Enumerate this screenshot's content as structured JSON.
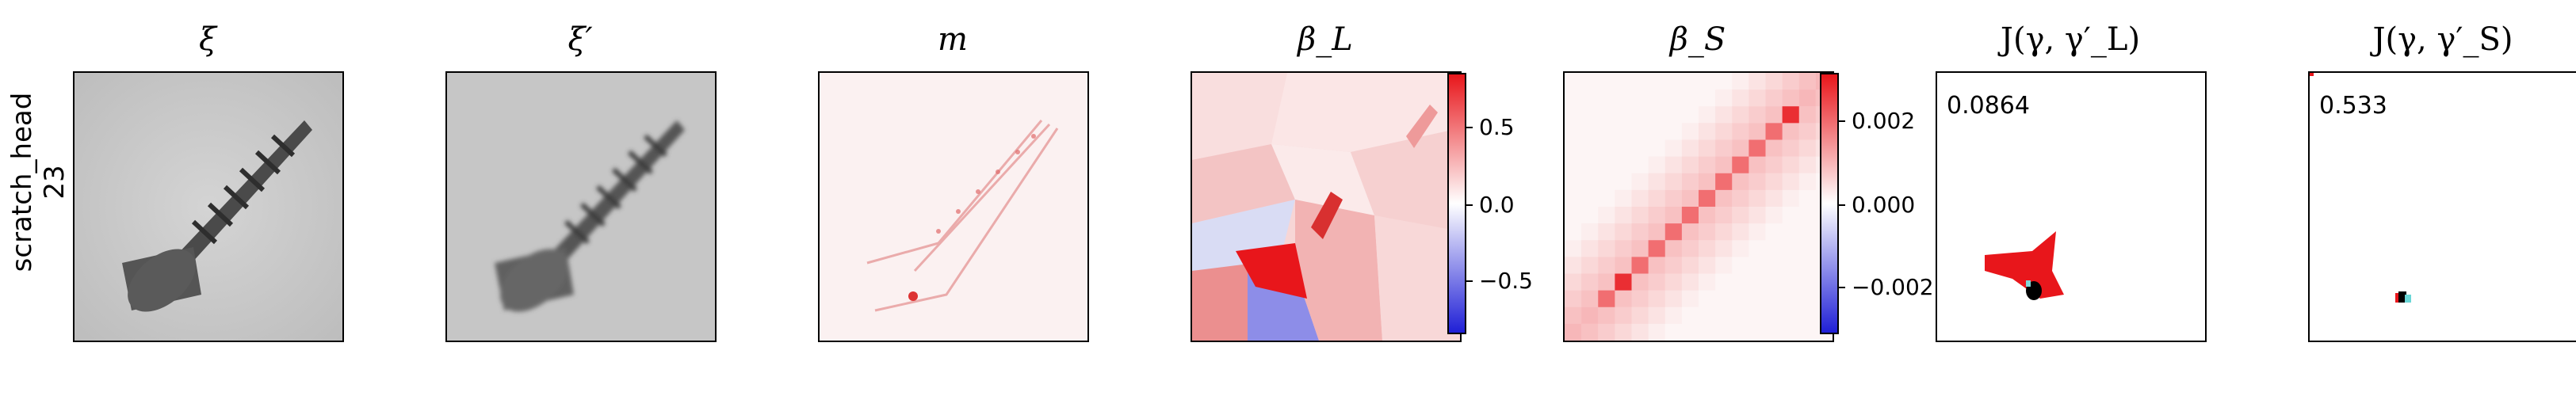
{
  "row_label": {
    "line1": "scratch_head",
    "line2": "23"
  },
  "panels": [
    {
      "title": "ξ"
    },
    {
      "title": "ξ′"
    },
    {
      "title": "m"
    },
    {
      "title": "β_L"
    },
    {
      "title": "β_S"
    },
    {
      "title": "J(γ, γ′_L)"
    },
    {
      "title": "J(γ, γ′_S)"
    }
  ],
  "colorbar_L": {
    "ticks": [
      "0.5",
      "0.0",
      "−0.5"
    ]
  },
  "colorbar_S": {
    "ticks": [
      "0.002",
      "0.000",
      "−0.002"
    ]
  },
  "scores": {
    "L": "0.0864",
    "S": "0.533"
  },
  "colors": {
    "positive": "#e8161b",
    "negative": "#1f1fd6",
    "neutral": "#ffffff"
  }
}
